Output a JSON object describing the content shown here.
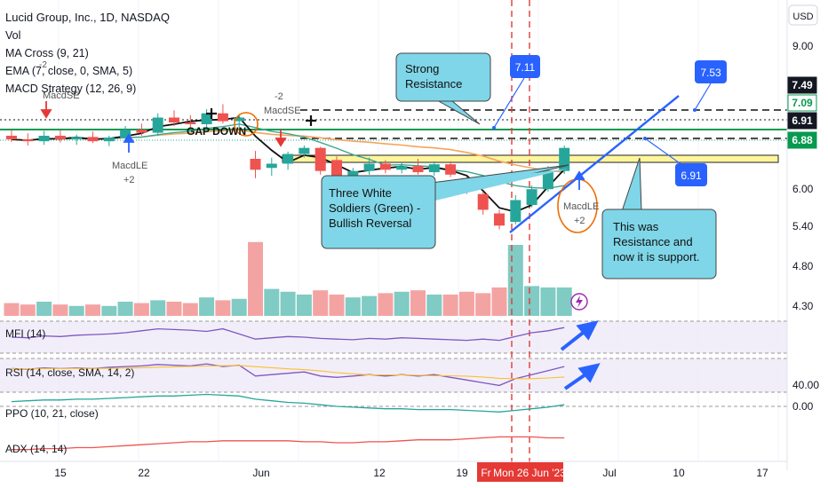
{
  "header": {
    "title": "Lucid Group, Inc., 1D, NASDAQ",
    "indicators": [
      "Vol",
      "MA Cross (9, 21)",
      "EMA (7, close, 0, SMA, 5)",
      "MACD Strategy (12, 26, 9)"
    ]
  },
  "currency_button": "USD",
  "panes": {
    "mfi": "MFI (14)",
    "rsi": "RSI (14, close, SMA, 14, 2)",
    "ppo": "PPO (10, 21, close)",
    "adx": "ADX (14, 14)"
  },
  "annotations": {
    "strong_resistance": "Strong\nResistance",
    "three_white": "Three White\nSoldiers (Green) -\nBullish Reversal",
    "support": "This was\nResistance and\nnow it is support.",
    "gap_down": "GAP DOWN",
    "callout_711": "7.11",
    "callout_753": "7.53",
    "callout_691": "6.91",
    "macdle_left": "MacdLE\n+2",
    "macdle_right": "MacdLE\n+2",
    "macdse_top": "MacdSE",
    "macdse_mid": "-2\nMacdSE",
    "small_2": "-2"
  },
  "colors": {
    "up": "#26a69a",
    "down": "#ef5350",
    "vol_up": "#80cbc4",
    "vol_down": "#f4a3a3",
    "callout_fill": "#7fd6e8",
    "blue_tag": "#2962ff",
    "support_band": "#fff59d",
    "green_line": "#089950",
    "trend_blue": "#2962ff",
    "date_highlight": "#e53935"
  },
  "chart_data": {
    "type": "candlestick",
    "y_axis": {
      "ticks": [
        "9.00",
        "7.49",
        "7.09",
        "6.91",
        "6.88",
        "6.00",
        "5.40",
        "4.80",
        "4.30"
      ],
      "range": [
        4.2,
        9.2
      ]
    },
    "x_axis": {
      "ticks": [
        "15",
        "22",
        "Jun",
        "12",
        "19",
        "Fr",
        "Mon 26 Jun '23",
        "Jul",
        "10",
        "17"
      ]
    },
    "price_labels": [
      {
        "value": "7.49",
        "style": "dark"
      },
      {
        "value": "7.09",
        "style": "green"
      },
      {
        "value": "6.91",
        "style": "dark"
      },
      {
        "value": "6.88",
        "style": "green"
      }
    ],
    "lower_axis_ticks": [
      "40.00",
      "0.00"
    ],
    "candles": [
      {
        "o": 7.08,
        "h": 7.18,
        "l": 6.98,
        "c": 7.02
      },
      {
        "o": 7.02,
        "h": 7.12,
        "l": 6.92,
        "c": 6.99
      },
      {
        "o": 6.99,
        "h": 7.16,
        "l": 6.93,
        "c": 7.08
      },
      {
        "o": 7.08,
        "h": 7.18,
        "l": 6.97,
        "c": 7.02
      },
      {
        "o": 7.02,
        "h": 7.1,
        "l": 6.93,
        "c": 7.06
      },
      {
        "o": 7.06,
        "h": 7.15,
        "l": 6.96,
        "c": 6.99
      },
      {
        "o": 6.99,
        "h": 7.08,
        "l": 6.91,
        "c": 7.05
      },
      {
        "o": 7.05,
        "h": 7.24,
        "l": 7.0,
        "c": 7.18
      },
      {
        "o": 7.18,
        "h": 7.28,
        "l": 7.08,
        "c": 7.13
      },
      {
        "o": 7.13,
        "h": 7.45,
        "l": 7.08,
        "c": 7.38
      },
      {
        "o": 7.38,
        "h": 7.5,
        "l": 7.24,
        "c": 7.3
      },
      {
        "o": 7.3,
        "h": 7.42,
        "l": 7.2,
        "c": 7.27
      },
      {
        "o": 7.27,
        "h": 7.52,
        "l": 7.18,
        "c": 7.45
      },
      {
        "o": 7.45,
        "h": 7.6,
        "l": 7.28,
        "c": 7.32
      },
      {
        "o": 7.32,
        "h": 7.42,
        "l": 7.22,
        "c": 7.38
      },
      {
        "o": 6.7,
        "h": 6.83,
        "l": 6.38,
        "c": 6.52
      },
      {
        "o": 6.55,
        "h": 6.72,
        "l": 6.42,
        "c": 6.62
      },
      {
        "o": 6.62,
        "h": 6.82,
        "l": 6.52,
        "c": 6.78
      },
      {
        "o": 6.78,
        "h": 6.92,
        "l": 6.72,
        "c": 6.88
      },
      {
        "o": 6.88,
        "h": 6.9,
        "l": 6.44,
        "c": 6.5
      },
      {
        "o": 6.68,
        "h": 6.74,
        "l": 6.34,
        "c": 6.42
      },
      {
        "o": 6.42,
        "h": 6.55,
        "l": 6.34,
        "c": 6.5
      },
      {
        "o": 6.5,
        "h": 6.72,
        "l": 6.44,
        "c": 6.62
      },
      {
        "o": 6.62,
        "h": 6.68,
        "l": 6.46,
        "c": 6.52
      },
      {
        "o": 6.52,
        "h": 6.64,
        "l": 6.46,
        "c": 6.58
      },
      {
        "o": 6.58,
        "h": 6.7,
        "l": 6.44,
        "c": 6.48
      },
      {
        "o": 6.48,
        "h": 6.66,
        "l": 6.42,
        "c": 6.61
      },
      {
        "o": 6.61,
        "h": 6.66,
        "l": 6.4,
        "c": 6.44
      },
      {
        "o": 6.38,
        "h": 6.4,
        "l": 6.12,
        "c": 6.22
      },
      {
        "o": 6.12,
        "h": 6.16,
        "l": 5.78,
        "c": 5.86
      },
      {
        "o": 5.8,
        "h": 5.86,
        "l": 5.54,
        "c": 5.6
      },
      {
        "o": 5.66,
        "h": 6.1,
        "l": 5.62,
        "c": 6.02
      },
      {
        "o": 5.94,
        "h": 6.26,
        "l": 5.9,
        "c": 6.2
      },
      {
        "o": 6.2,
        "h": 6.58,
        "l": 6.16,
        "c": 6.5
      },
      {
        "o": 6.5,
        "h": 6.92,
        "l": 6.45,
        "c": 6.88
      }
    ],
    "volume": [
      0.9,
      0.8,
      1.0,
      0.8,
      0.7,
      0.8,
      0.7,
      1.0,
      0.9,
      1.1,
      1.0,
      0.9,
      1.3,
      1.1,
      1.2,
      5.2,
      1.9,
      1.7,
      1.5,
      1.8,
      1.5,
      1.3,
      1.4,
      1.6,
      1.7,
      1.8,
      1.5,
      1.5,
      1.7,
      1.6,
      2.0,
      5.0,
      2.1,
      2.0,
      2.0
    ],
    "series": [
      {
        "name": "MFI (14)",
        "values": [
          45,
          44,
          47,
          46,
          48,
          49,
          50,
          52,
          55,
          58,
          57,
          56,
          54,
          58,
          50,
          42,
          44,
          46,
          45,
          43,
          42,
          41,
          43,
          42,
          44,
          43,
          42,
          41,
          40,
          42,
          40,
          46,
          52,
          55,
          60
        ]
      },
      {
        "name": "RSI (14, close, SMA, 14, 2)",
        "values": [
          55,
          54,
          56,
          55,
          56,
          55,
          57,
          58,
          59,
          61,
          60,
          59,
          62,
          58,
          60,
          44,
          46,
          48,
          50,
          44,
          42,
          44,
          46,
          44,
          46,
          44,
          46,
          42,
          38,
          34,
          30,
          40,
          46,
          52,
          58
        ]
      },
      {
        "name": "PPO (10, 21, close)",
        "values": [
          0.6,
          0.7,
          0.8,
          0.8,
          0.9,
          0.9,
          1.0,
          1.1,
          1.2,
          1.3,
          1.3,
          1.4,
          1.5,
          1.4,
          1.3,
          0.9,
          0.7,
          0.5,
          0.4,
          0.2,
          0.0,
          -0.1,
          -0.2,
          -0.3,
          -0.3,
          -0.4,
          -0.4,
          -0.4,
          -0.5,
          -0.6,
          -0.7,
          -0.5,
          -0.3,
          -0.1,
          0.2
        ]
      },
      {
        "name": "ADX (14, 14)",
        "values": [
          18,
          18,
          19,
          19,
          20,
          20,
          21,
          22,
          23,
          24,
          25,
          26,
          26,
          27,
          27,
          27,
          27,
          27,
          26,
          26,
          25,
          25,
          26,
          26,
          27,
          28,
          28,
          28,
          29,
          30,
          31,
          31,
          31,
          30,
          30
        ]
      }
    ]
  }
}
